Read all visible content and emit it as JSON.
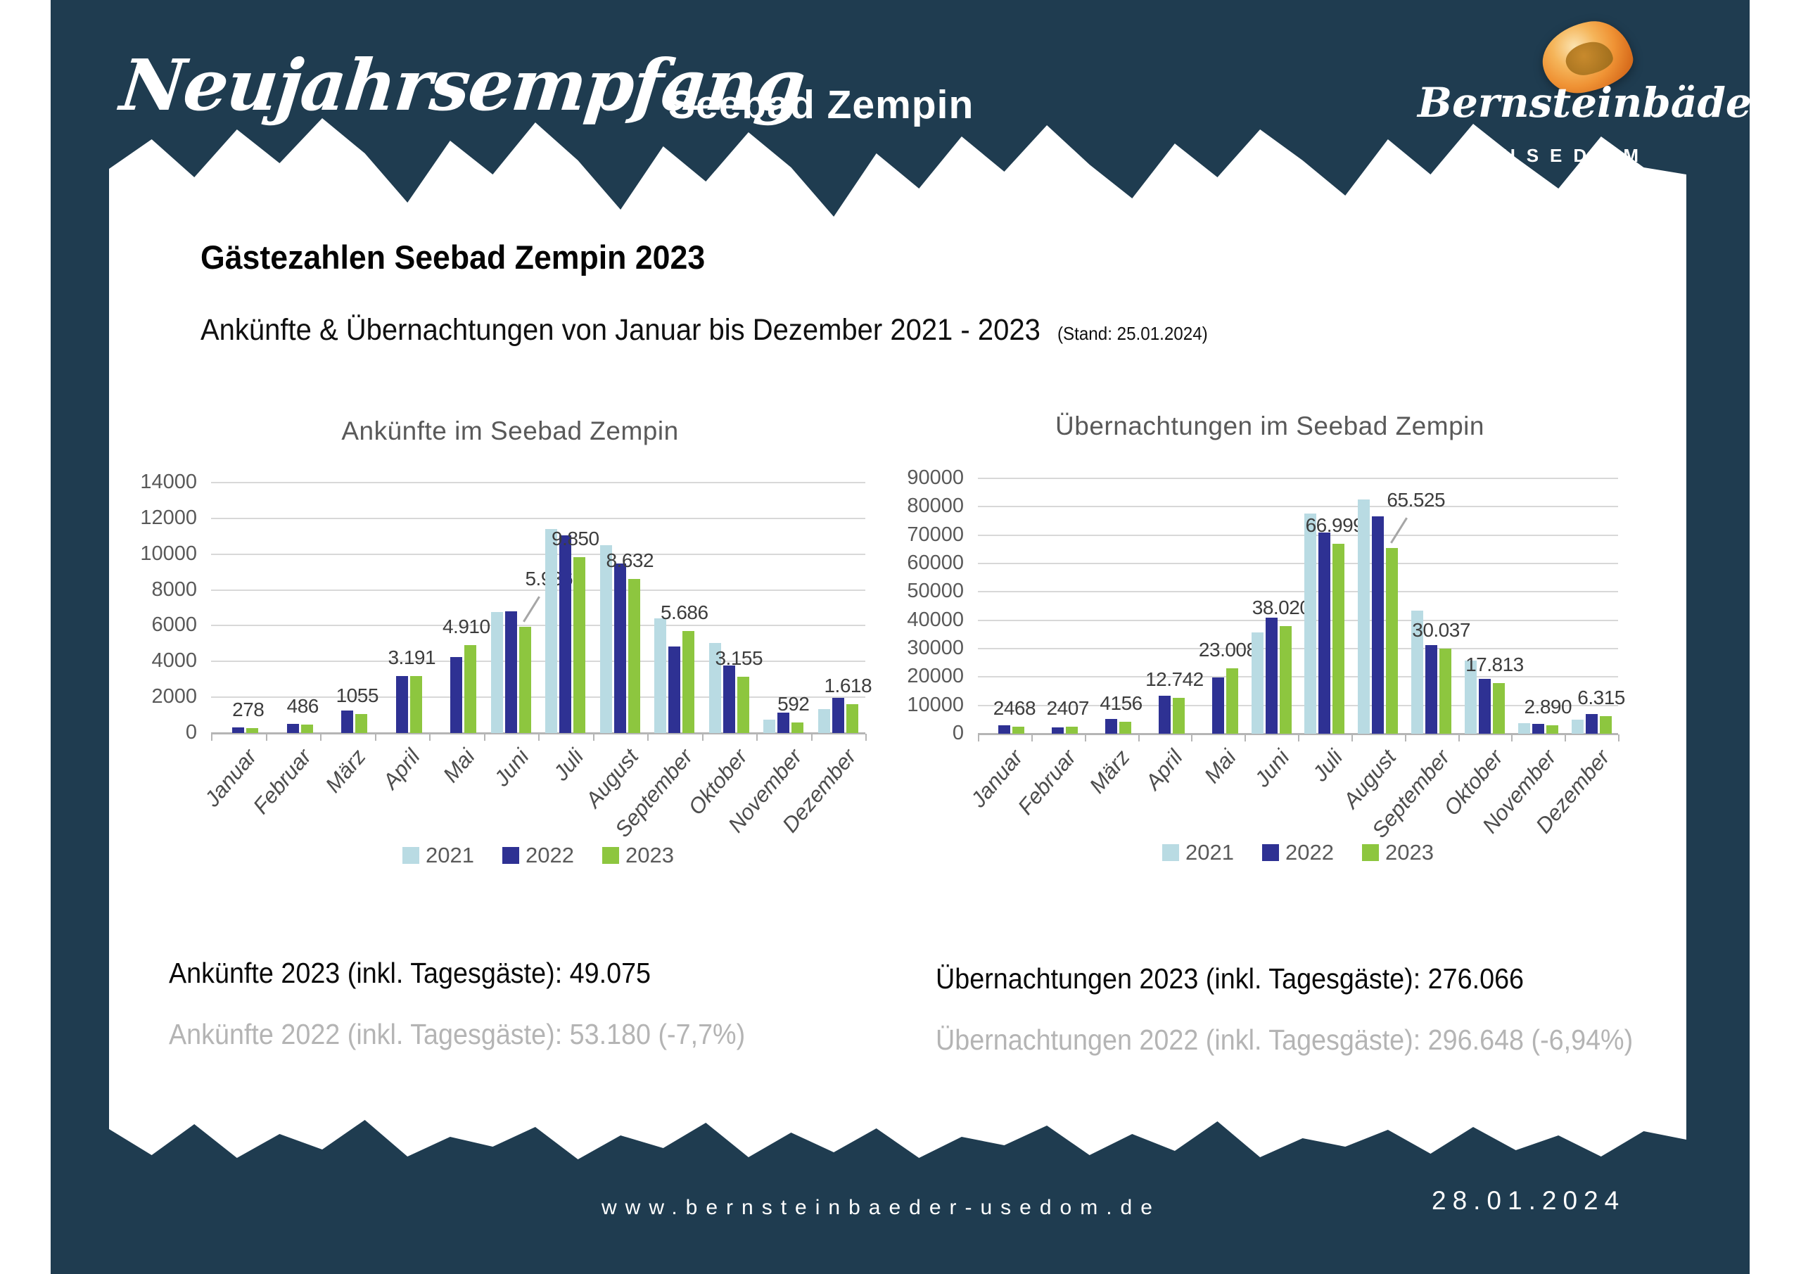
{
  "header": {
    "script_title": "Neujahrsempfang",
    "subtitle": "Seebad Zempin",
    "logo": {
      "brand": "Bernsteinbäder",
      "sub": "USEDOM",
      "icon": "amber-stone-icon"
    }
  },
  "page": {
    "title": "Gästezahlen Seebad Zempin 2023",
    "subtitle": "Ankünfte & Übernachtungen von Januar bis Dezember 2021 - 2023",
    "stand_note": "(Stand: 25.01.2024)"
  },
  "colors": {
    "background": "#1f3c50",
    "paper": "#ffffff",
    "y2021": "#b9dbe3",
    "y2022": "#2e3193",
    "y2023": "#8dc63f",
    "chart_text": "#595959",
    "stat_gray": "#b4b4b4"
  },
  "chart_data": [
    {
      "type": "bar",
      "title": "Ankünfte im Seebad Zempin",
      "categories": [
        "Januar",
        "Februar",
        "März",
        "April",
        "Mai",
        "Juni",
        "Juli",
        "August",
        "September",
        "Oktober",
        "November",
        "Dezember"
      ],
      "series": [
        {
          "name": "2021",
          "color": "#b9dbe3",
          "values": [
            null,
            null,
            null,
            null,
            null,
            6780,
            11400,
            10500,
            6420,
            5030,
            750,
            1350
          ]
        },
        {
          "name": "2022",
          "color": "#2e3193",
          "values": [
            300,
            520,
            1250,
            3200,
            4230,
            6800,
            11050,
            9480,
            4820,
            3780,
            1130,
            1950
          ]
        },
        {
          "name": "2023",
          "color": "#8dc63f",
          "values": [
            278,
            486,
            1055,
            3191,
            4910,
            5936,
            9850,
            8632,
            5686,
            3155,
            592,
            1618
          ]
        }
      ],
      "value_labels": [
        "278",
        "486",
        "1055",
        "3.191",
        "4.910",
        "5.936",
        "9.850",
        "8.632",
        "5.686",
        "3.155",
        "592",
        "1.618"
      ],
      "leader_index": 5,
      "ylim": [
        0,
        14000
      ],
      "ytick_step": 2000,
      "grid": true,
      "legend_position": "bottom"
    },
    {
      "type": "bar",
      "title": "Übernachtungen im Seebad Zempin",
      "categories": [
        "Januar",
        "Februar",
        "März",
        "April",
        "Mai",
        "Juni",
        "Juli",
        "August",
        "September",
        "Oktober",
        "November",
        "Dezember"
      ],
      "series": [
        {
          "name": "2021",
          "color": "#b9dbe3",
          "values": [
            null,
            null,
            null,
            null,
            null,
            35700,
            77700,
            82500,
            43300,
            25800,
            3700,
            5000
          ]
        },
        {
          "name": "2022",
          "color": "#2e3193",
          "values": [
            3000,
            2300,
            5300,
            13300,
            19800,
            41000,
            70800,
            76500,
            31300,
            19300,
            3500,
            6900
          ]
        },
        {
          "name": "2023",
          "color": "#8dc63f",
          "values": [
            2468,
            2407,
            4156,
            12742,
            23008,
            38020,
            66999,
            65525,
            30037,
            17813,
            2890,
            6315
          ]
        }
      ],
      "value_labels": [
        "2468",
        "2407",
        "4156",
        "12.742",
        "23.008",
        "38.020",
        "66.999",
        "65.525",
        "30.037",
        "17.813",
        "2.890",
        "6.315"
      ],
      "leader_index": 7,
      "ylim": [
        0,
        90000
      ],
      "ytick_step": 10000,
      "grid": true,
      "legend_position": "bottom"
    }
  ],
  "stats": {
    "arrivals_2023": "Ankünfte 2023 (inkl. Tagesgäste): 49.075",
    "arrivals_2022": "Ankünfte 2022 (inkl. Tagesgäste): 53.180 (-7,7%)",
    "overnights_2023": "Übernachtungen 2023 (inkl. Tagesgäste): 276.066",
    "overnights_2022": "Übernachtungen 2022 (inkl. Tagesgäste): 296.648 (-6,94%)"
  },
  "footer": {
    "url": "www.bernsteinbaeder-usedom.de",
    "date": "28.01.2024"
  }
}
